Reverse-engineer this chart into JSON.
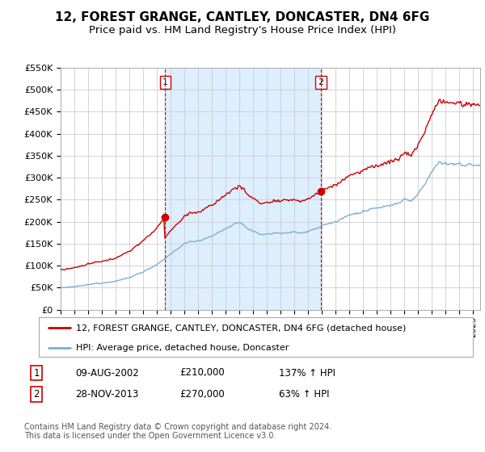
{
  "title": "12, FOREST GRANGE, CANTLEY, DONCASTER, DN4 6FG",
  "subtitle": "Price paid vs. HM Land Registry's House Price Index (HPI)",
  "ylim": [
    0,
    550000
  ],
  "yticks": [
    0,
    50000,
    100000,
    150000,
    200000,
    250000,
    300000,
    350000,
    400000,
    450000,
    500000,
    550000
  ],
  "xlim_start": 1995.0,
  "xlim_end": 2025.5,
  "sale1_x": 2002.607,
  "sale1_y": 210000,
  "sale1_label": "1",
  "sale2_x": 2013.91,
  "sale2_y": 270000,
  "sale2_label": "2",
  "legend_line1": "12, FOREST GRANGE, CANTLEY, DONCASTER, DN4 6FG (detached house)",
  "legend_line2": "HPI: Average price, detached house, Doncaster",
  "table_row1_num": "1",
  "table_row1_date": "09-AUG-2002",
  "table_row1_price": "£210,000",
  "table_row1_hpi": "137% ↑ HPI",
  "table_row2_num": "2",
  "table_row2_date": "28-NOV-2013",
  "table_row2_price": "£270,000",
  "table_row2_hpi": "63% ↑ HPI",
  "footer": "Contains HM Land Registry data © Crown copyright and database right 2024.\nThis data is licensed under the Open Government Licence v3.0.",
  "red_color": "#cc0000",
  "blue_color": "#7ab0d4",
  "shade_color": "#ddeeff",
  "vline_color": "#cc0000",
  "bg_color": "#ffffff",
  "grid_color": "#cccccc",
  "title_fontsize": 11,
  "subtitle_fontsize": 9.5,
  "tick_fontsize": 8,
  "legend_fontsize": 8,
  "table_fontsize": 8.5,
  "footer_fontsize": 7
}
